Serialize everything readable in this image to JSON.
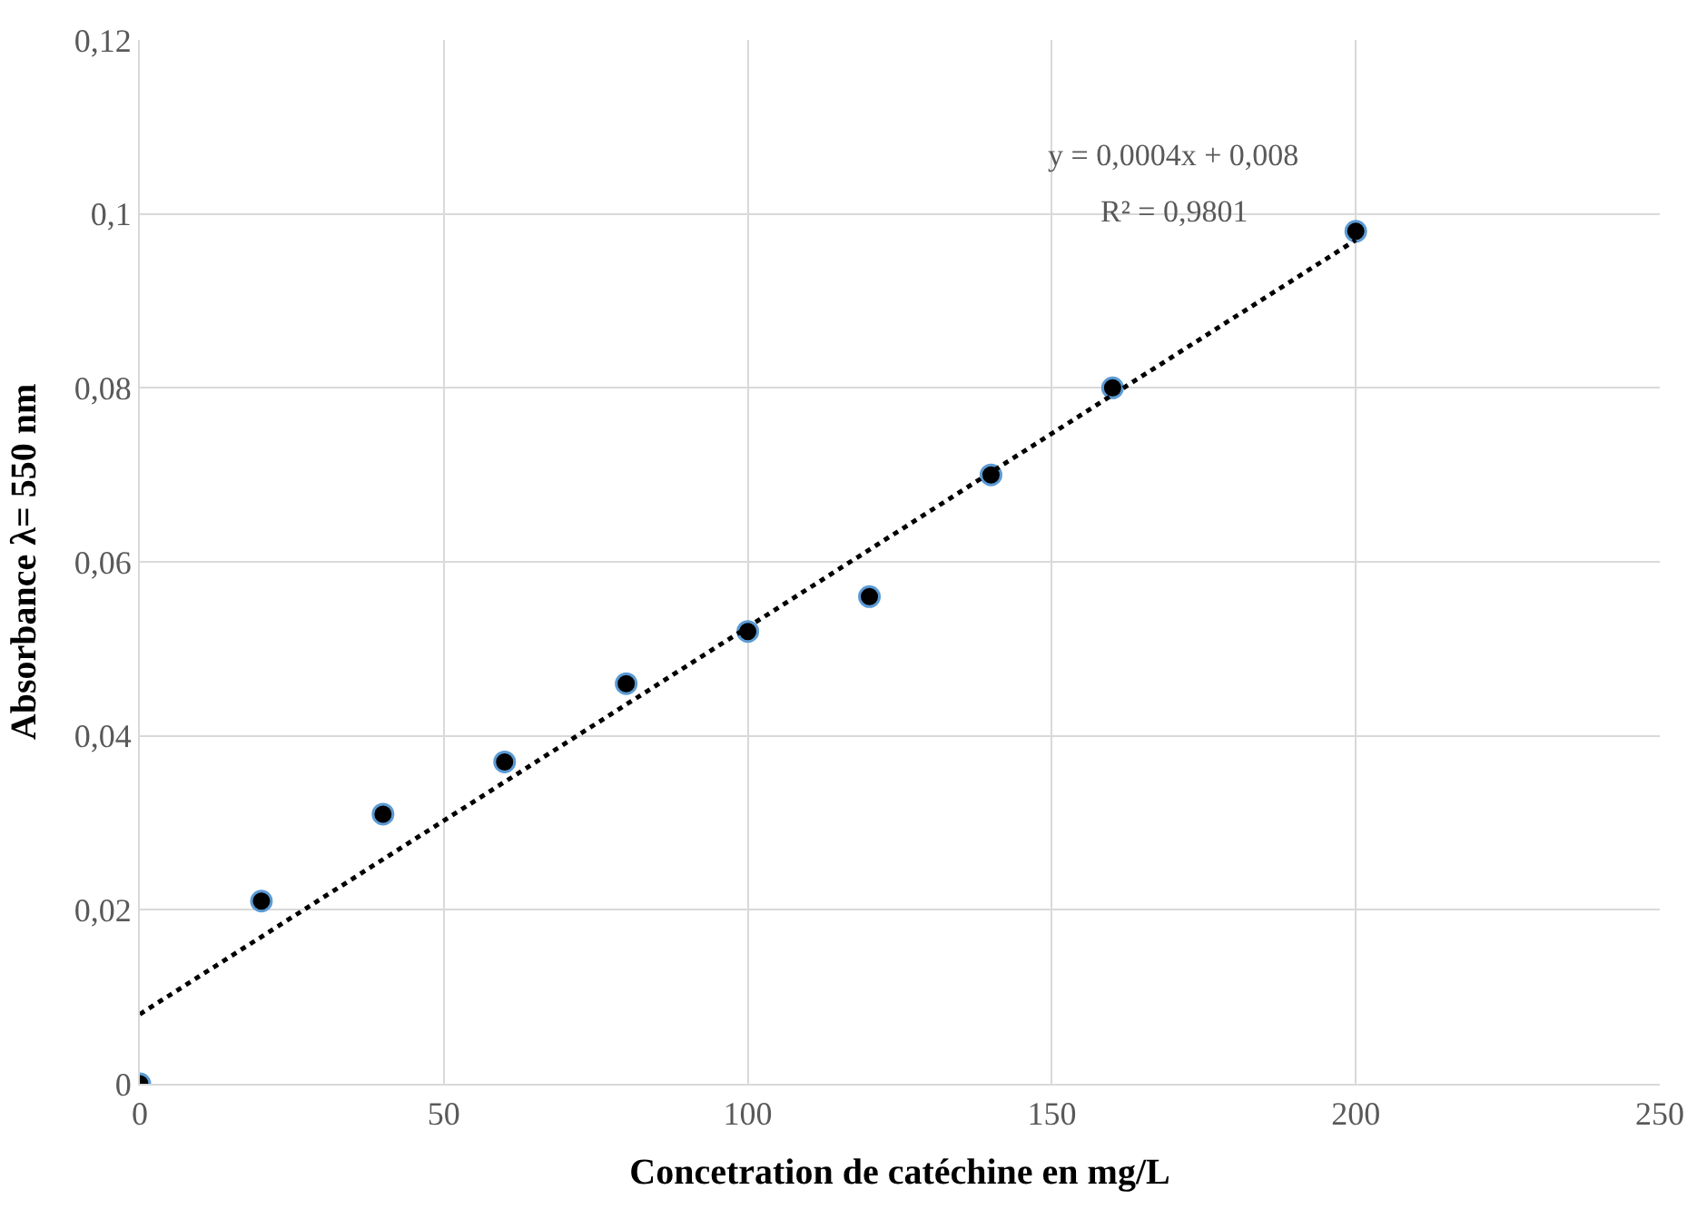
{
  "chart_data": {
    "type": "scatter",
    "xlabel": "Concetration de catéchine en mg/L",
    "ylabel": "Absorbance λ= 550 nm",
    "xlim": [
      0,
      250
    ],
    "xticks": [
      0,
      50,
      100,
      150,
      200,
      250
    ],
    "ylim": [
      0,
      0.12
    ],
    "yticks": [
      0,
      {
        "value": 0.02,
        "label": "0,02"
      },
      {
        "value": 0.04,
        "label": "0,04"
      },
      {
        "value": 0.06,
        "label": "0,06"
      },
      {
        "value": 0.08,
        "label": "0,08"
      },
      {
        "value": 0.1,
        "label": "0,1"
      },
      {
        "value": 0.12,
        "label": "0,12"
      }
    ],
    "grid": true,
    "series": [
      {
        "color": "#000000",
        "marker": "circle",
        "x": [
          0,
          20,
          40,
          60,
          80,
          100,
          120,
          140,
          160,
          200
        ],
        "values": [
          0,
          0.021,
          0.031,
          0.037,
          0.046,
          0.052,
          0.056,
          0.07,
          0.08,
          0.098
        ]
      },
      {
        "type": "line",
        "color": "#000000",
        "line_style": "dotted",
        "marker": "none",
        "x": [
          0,
          200
        ],
        "values": [
          0.008,
          0.097
        ]
      }
    ],
    "annotations": [
      "y = 0,0004x + 0,008",
      "R² = 0,9801"
    ]
  }
}
